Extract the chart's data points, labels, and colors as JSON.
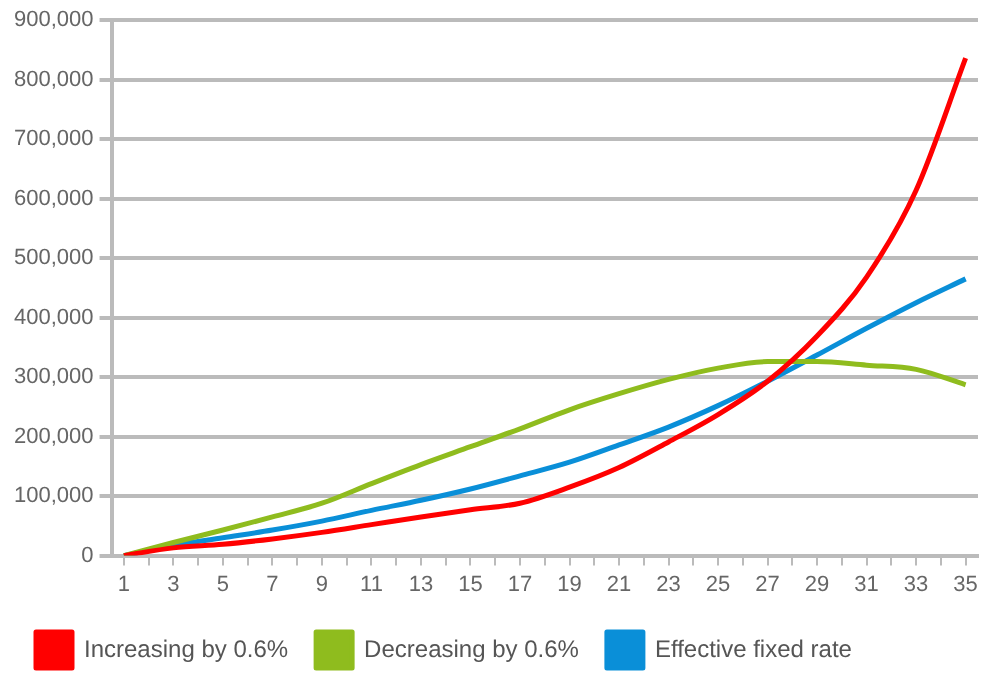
{
  "chart_data": {
    "type": "line",
    "x": [
      1,
      3,
      5,
      7,
      9,
      11,
      13,
      15,
      17,
      19,
      21,
      23,
      25,
      27,
      29,
      31,
      33,
      35
    ],
    "series": [
      {
        "name": "Increasing by 0.6%",
        "color": "#ff0000",
        "values": [
          0,
          13000,
          19000,
          28000,
          39000,
          52000,
          65000,
          77000,
          88000,
          115000,
          148000,
          191000,
          237000,
          293000,
          369000,
          468000,
          614000,
          836000
        ]
      },
      {
        "name": "Decreasing by 0.6%",
        "color": "#8fbc1e",
        "values": [
          0,
          22000,
          43000,
          65000,
          88000,
          121000,
          153000,
          183000,
          213000,
          245000,
          272000,
          296000,
          315000,
          326000,
          326000,
          320000,
          313000,
          287000
        ]
      },
      {
        "name": "Effective fixed rate",
        "color": "#0a8fd8",
        "values": [
          0,
          17000,
          30000,
          43000,
          58000,
          76000,
          93000,
          112000,
          134000,
          157000,
          186000,
          216000,
          252000,
          293000,
          337000,
          382000,
          425000,
          465000
        ]
      }
    ],
    "xlim": [
      0.5,
      35.5
    ],
    "xticks": [
      1,
      {
        "value": 2,
        "label": null
      },
      3,
      {
        "value": 4,
        "label": null
      },
      5,
      {
        "value": 6,
        "label": null
      },
      7,
      {
        "value": 8,
        "label": null
      },
      9,
      {
        "value": 10,
        "label": null
      },
      11,
      {
        "value": 12,
        "label": null
      },
      13,
      {
        "value": 14,
        "label": null
      },
      15,
      {
        "value": 16,
        "label": null
      },
      17,
      {
        "value": 18,
        "label": null
      },
      19,
      {
        "value": 20,
        "label": null
      },
      21,
      {
        "value": 22,
        "label": null
      },
      23,
      {
        "value": 24,
        "label": null
      },
      25,
      {
        "value": 26,
        "label": null
      },
      27,
      {
        "value": 28,
        "label": null
      },
      29,
      {
        "value": 30,
        "label": null
      },
      31,
      {
        "value": 32,
        "label": null
      },
      33,
      {
        "value": 34,
        "label": null
      },
      35
    ],
    "ylim": [
      0,
      900000
    ],
    "yticks": [
      0,
      {
        "value": 100000,
        "label": "100,000"
      },
      {
        "value": 200000,
        "label": "200,000"
      },
      {
        "value": 300000,
        "label": "300,000"
      },
      {
        "value": 400000,
        "label": "400,000"
      },
      {
        "value": 500000,
        "label": "500,000"
      },
      {
        "value": 600000,
        "label": "600,000"
      },
      {
        "value": 700000,
        "label": "700,000"
      },
      {
        "value": 800000,
        "label": "800,000"
      },
      {
        "value": 900000,
        "label": "900,000"
      }
    ],
    "grid": "y",
    "legend": "bottom left",
    "marker": "none",
    "line_style": "solid"
  }
}
